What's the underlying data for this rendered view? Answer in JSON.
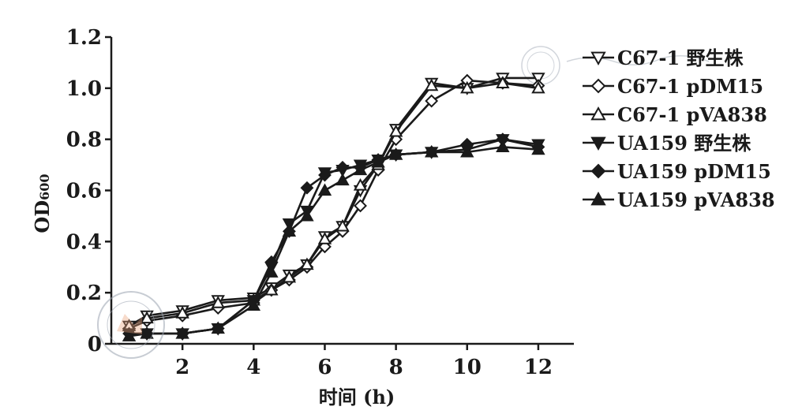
{
  "chart_data": {
    "type": "line",
    "xlabel": "时间 (h)",
    "ylabel": "OD600",
    "ylabel_main": "OD",
    "ylabel_sub": "600",
    "xlim": [
      0,
      13
    ],
    "ylim": [
      0,
      1.2
    ],
    "xticks": [
      2,
      4,
      6,
      8,
      10,
      12
    ],
    "yticks": [
      0,
      0.2,
      0.4,
      0.6,
      0.8,
      1.0,
      1.2
    ],
    "ytick_labels": [
      "0",
      "0.2",
      "0.4",
      "0.6",
      "0.8",
      "1.0",
      "1.2"
    ],
    "legend_position": "right",
    "grid": false,
    "series": [
      {
        "name": "C67-1 野生株",
        "marker": "triangle-down-open",
        "x": [
          0.5,
          1,
          2,
          3,
          4,
          4.5,
          5,
          5.5,
          6,
          6.5,
          7,
          7.5,
          8,
          9,
          10,
          11,
          12
        ],
        "y": [
          0.07,
          0.11,
          0.13,
          0.17,
          0.18,
          0.22,
          0.27,
          0.31,
          0.42,
          0.46,
          0.6,
          0.7,
          0.84,
          1.02,
          1.0,
          1.04,
          1.04
        ]
      },
      {
        "name": "C67-1 pDM15",
        "marker": "diamond-open",
        "x": [
          0.5,
          1,
          2,
          3,
          4,
          4.5,
          5,
          5.5,
          6,
          6.5,
          7,
          7.5,
          8,
          9,
          10,
          11,
          12
        ],
        "y": [
          0.06,
          0.09,
          0.11,
          0.14,
          0.16,
          0.21,
          0.25,
          0.3,
          0.38,
          0.44,
          0.54,
          0.68,
          0.8,
          0.95,
          1.03,
          1.02,
          1.01
        ]
      },
      {
        "name": "C67-1 pVA838",
        "marker": "triangle-up-open",
        "x": [
          0.5,
          1,
          2,
          3,
          4,
          4.5,
          5,
          5.5,
          6,
          6.5,
          7,
          7.5,
          8,
          9,
          10,
          11,
          12
        ],
        "y": [
          0.07,
          0.1,
          0.12,
          0.16,
          0.17,
          0.21,
          0.26,
          0.31,
          0.41,
          0.46,
          0.62,
          0.7,
          0.83,
          1.01,
          1.0,
          1.02,
          1.0
        ]
      },
      {
        "name": "UA159 野生株",
        "marker": "triangle-down-filled",
        "x": [
          0.5,
          1,
          2,
          3,
          4,
          4.5,
          5,
          5.5,
          6,
          6.5,
          7,
          7.5,
          8,
          9,
          10,
          11,
          12
        ],
        "y": [
          0.04,
          0.04,
          0.04,
          0.06,
          0.17,
          0.3,
          0.47,
          0.52,
          0.67,
          0.68,
          0.7,
          0.72,
          0.74,
          0.75,
          0.76,
          0.8,
          0.78
        ]
      },
      {
        "name": "UA159 pDM15",
        "marker": "diamond-filled",
        "x": [
          0.5,
          1,
          2,
          3,
          4,
          4.5,
          5,
          5.5,
          6,
          6.5,
          7,
          7.5,
          8,
          9,
          10,
          11,
          12
        ],
        "y": [
          0.04,
          0.04,
          0.04,
          0.06,
          0.17,
          0.32,
          0.44,
          0.61,
          0.66,
          0.69,
          0.69,
          0.72,
          0.74,
          0.75,
          0.78,
          0.8,
          0.77
        ]
      },
      {
        "name": "UA159 pVA838",
        "marker": "triangle-up-filled",
        "x": [
          0.5,
          1,
          2,
          3,
          4,
          4.5,
          5,
          5.5,
          6,
          6.5,
          7,
          7.5,
          8,
          9,
          10,
          11,
          12
        ],
        "y": [
          0.03,
          0.04,
          0.04,
          0.06,
          0.15,
          0.28,
          0.44,
          0.5,
          0.6,
          0.64,
          0.68,
          0.71,
          0.74,
          0.75,
          0.75,
          0.77,
          0.76
        ]
      }
    ]
  },
  "colors": {
    "series_line": "#1a1a1a",
    "axis": "#1a1a1a",
    "background": "#ffffff",
    "watermark": "#9aa3b0",
    "watermark_accent": "#e8a078"
  }
}
